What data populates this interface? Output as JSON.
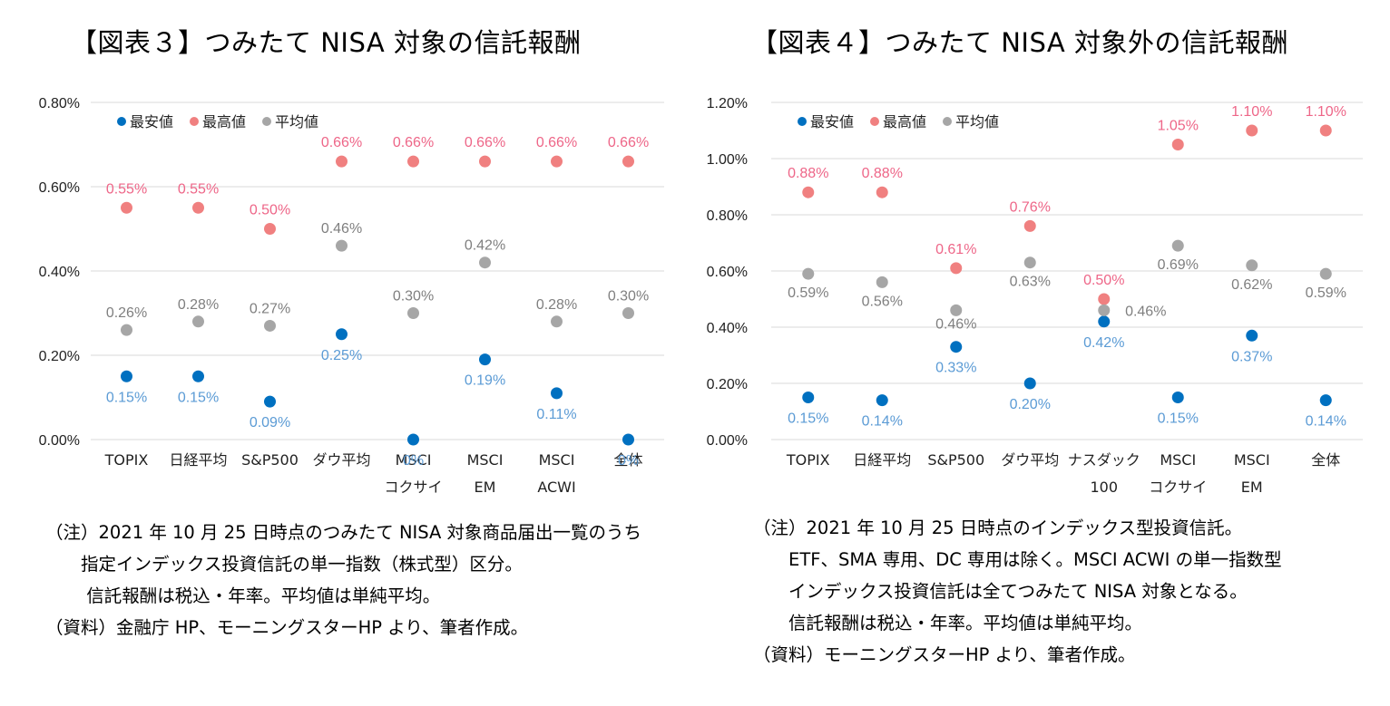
{
  "chart_data": [
    {
      "type": "scatter",
      "title": "【図表３】つみたて NISA 対象の信託報酬",
      "categories": [
        [
          "TOPIX"
        ],
        [
          "日経平均"
        ],
        [
          "S&P500"
        ],
        [
          "ダウ平均"
        ],
        [
          "MSCI",
          "コクサイ"
        ],
        [
          "MSCI",
          "EM"
        ],
        [
          "MSCI",
          "ACWI"
        ],
        [
          "全体"
        ]
      ],
      "ylim": [
        0,
        0.8
      ],
      "yticks": [
        "0.00%",
        "0.20%",
        "0.40%",
        "0.60%",
        "0.80%"
      ],
      "grid": true,
      "legend_position": "top-left",
      "series": [
        {
          "name": "最安値",
          "color": "#0070c0",
          "label_color": "#5b9bd5",
          "values": [
            0.15,
            0.15,
            0.09,
            0.25,
            0,
            0.19,
            0.11,
            0
          ],
          "labels": [
            "0.15%",
            "0.15%",
            "0.09%",
            "0.25%",
            "0%",
            "0.19%",
            "0.11%",
            "0%"
          ]
        },
        {
          "name": "最高値",
          "color": "#f08080",
          "label_color": "#ee6688",
          "values": [
            0.55,
            0.55,
            0.5,
            0.66,
            0.66,
            0.66,
            0.66,
            0.66
          ],
          "labels": [
            "0.55%",
            "0.55%",
            "0.50%",
            "0.66%",
            "0.66%",
            "0.66%",
            "0.66%",
            "0.66%"
          ]
        },
        {
          "name": "平均値",
          "color": "#a6a6a6",
          "label_color": "#7f7f7f",
          "values": [
            0.26,
            0.28,
            0.27,
            0.46,
            0.3,
            0.42,
            0.28,
            0.3
          ],
          "labels": [
            "0.26%",
            "0.28%",
            "0.27%",
            "0.46%",
            "0.30%",
            "0.42%",
            "0.28%",
            "0.30%"
          ]
        }
      ]
    },
    {
      "type": "scatter",
      "title": "【図表４】つみたて NISA 対象外の信託報酬",
      "categories": [
        [
          "TOPIX"
        ],
        [
          "日経平均"
        ],
        [
          "S&P500"
        ],
        [
          "ダウ平均"
        ],
        [
          "ナスダック",
          "100"
        ],
        [
          "MSCI",
          "コクサイ"
        ],
        [
          "MSCI",
          "EM"
        ],
        [
          "全体"
        ]
      ],
      "ylim": [
        0,
        1.2
      ],
      "yticks": [
        "0.00%",
        "0.20%",
        "0.40%",
        "0.60%",
        "0.80%",
        "1.00%",
        "1.20%"
      ],
      "grid": true,
      "legend_position": "top-left",
      "series": [
        {
          "name": "最安値",
          "color": "#0070c0",
          "label_color": "#5b9bd5",
          "values": [
            0.15,
            0.14,
            0.33,
            0.2,
            0.42,
            0.15,
            0.37,
            0.14
          ],
          "labels": [
            "0.15%",
            "0.14%",
            "0.33%",
            "0.20%",
            "0.42%",
            "0.15%",
            "0.37%",
            "0.14%"
          ]
        },
        {
          "name": "最高値",
          "color": "#f08080",
          "label_color": "#ee6688",
          "values": [
            0.88,
            0.88,
            0.61,
            0.76,
            0.5,
            1.05,
            1.1,
            1.1
          ],
          "labels": [
            "0.88%",
            "0.88%",
            "0.61%",
            "0.76%",
            "0.50%",
            "1.05%",
            "1.10%",
            "1.10%"
          ]
        },
        {
          "name": "平均値",
          "color": "#a6a6a6",
          "label_color": "#7f7f7f",
          "values": [
            0.59,
            0.56,
            0.46,
            0.63,
            0.46,
            0.69,
            0.62,
            0.59
          ],
          "labels": [
            "0.59%",
            "0.56%",
            "0.46%",
            "0.63%",
            "0.46%",
            "0.69%",
            "0.62%",
            "0.59%"
          ]
        }
      ]
    }
  ],
  "notes": {
    "left": [
      "（注）2021 年 10 月 25 日時点のつみたて NISA 対象商品届出一覧のうち",
      "　　指定インデックス投資信託の単一指数（株式型）区分。",
      "　　 信託報酬は税込・年率。平均値は単純平均。",
      "（資料）金融庁 HP、モーニングスターHP より、筆者作成。"
    ],
    "right": [
      "（注）2021 年 10 月 25 日時点のインデックス型投資信託。",
      "　　ETF、SMA 専用、DC 専用は除く。MSCI ACWI の単一指数型",
      "　　インデックス投資信託は全てつみたて NISA 対象となる。",
      "　　信託報酬は税込・年率。平均値は単純平均。",
      "（資料）モーニングスターHP より、筆者作成。"
    ]
  }
}
